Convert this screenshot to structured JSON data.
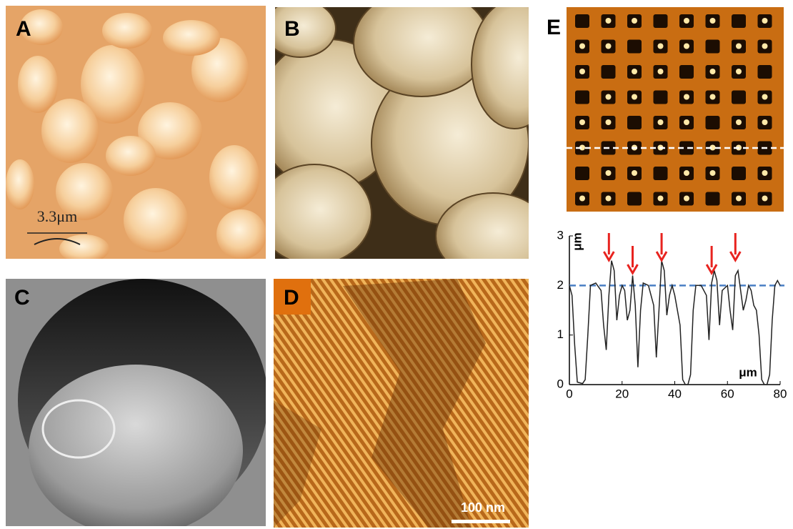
{
  "panels": {
    "a": {
      "label": "A",
      "scale_bar": "3.3μm"
    },
    "b": {
      "label": "B"
    },
    "c": {
      "label": "C"
    },
    "d": {
      "label": "D",
      "scale_bar": "100 nm"
    },
    "e": {
      "label": "E"
    }
  },
  "chart_data": {
    "type": "line",
    "x": [
      0,
      1,
      2,
      3,
      5,
      6,
      7,
      8,
      10,
      12,
      13,
      14,
      15,
      16,
      17,
      18,
      19,
      20,
      21,
      22,
      23,
      24,
      25,
      26,
      27,
      28,
      30,
      32,
      33,
      34,
      35,
      36,
      37,
      38,
      39,
      40,
      42,
      43,
      44,
      45,
      46,
      47,
      48,
      50,
      52,
      53,
      54,
      55,
      56,
      57,
      58,
      60,
      61,
      62,
      63,
      64,
      65,
      66,
      67,
      68,
      69,
      70,
      71,
      72,
      73,
      74,
      75,
      76,
      77,
      78,
      79,
      80
    ],
    "series": [
      {
        "color": "#222222",
        "values": [
          2.0,
          1.8,
          0.8,
          0.05,
          0.02,
          0.1,
          1.0,
          2.0,
          2.05,
          1.9,
          1.2,
          0.7,
          1.8,
          2.5,
          2.3,
          1.3,
          1.8,
          2.0,
          1.9,
          1.3,
          1.5,
          2.2,
          1.6,
          0.35,
          1.5,
          2.05,
          2.0,
          1.6,
          0.55,
          1.5,
          2.5,
          2.3,
          1.4,
          1.8,
          2.0,
          1.8,
          1.2,
          0.1,
          0.0,
          0.0,
          0.2,
          1.5,
          2.0,
          2.0,
          1.8,
          0.9,
          2.05,
          2.3,
          2.1,
          1.2,
          1.9,
          2.0,
          1.5,
          1.1,
          2.2,
          2.3,
          1.9,
          1.5,
          1.7,
          2.0,
          1.9,
          1.6,
          1.5,
          1.0,
          0.1,
          0.0,
          0.0,
          0.2,
          1.3,
          2.0,
          2.1,
          2.0
        ]
      }
    ],
    "xlim": [
      0,
      80
    ],
    "ylim": [
      0,
      3
    ],
    "xticks": [
      0,
      20,
      40,
      60,
      80
    ],
    "yticks": [
      0,
      1,
      2,
      3
    ],
    "x_label": "μm",
    "y_label": "μm",
    "reference_line": 2,
    "reference_color": "#4a7fc4",
    "arrows_x": [
      15,
      24,
      35,
      54,
      63
    ],
    "arrow_color": "#e8231f"
  }
}
